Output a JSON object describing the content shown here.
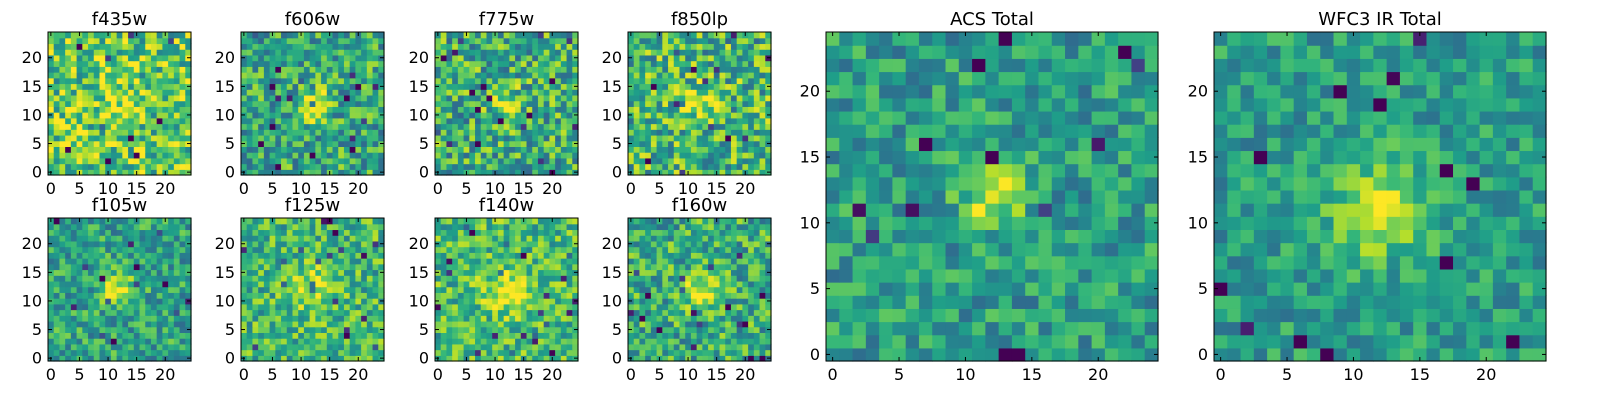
{
  "chart_data": [
    {
      "type": "heatmap",
      "title": "f435w",
      "x_ticks": [
        "0",
        "5",
        "10",
        "15",
        "20"
      ],
      "y_ticks": [
        "0",
        "5",
        "10",
        "15",
        "20"
      ],
      "xlim": [
        -0.5,
        24.5
      ],
      "ylim": [
        -0.5,
        24.5
      ],
      "grid_size": [
        25,
        25
      ],
      "colormap": "viridis",
      "grid": false,
      "peak": {
        "x": 12,
        "y": 12,
        "strength": 0.18,
        "width": 2.0
      },
      "noise_seed": 11,
      "noise_level": 0.5,
      "bias": 0.74
    },
    {
      "type": "heatmap",
      "title": "f606w",
      "x_ticks": [
        "0",
        "5",
        "10",
        "15",
        "20"
      ],
      "y_ticks": [
        "0",
        "5",
        "10",
        "15",
        "20"
      ],
      "xlim": [
        -0.5,
        24.5
      ],
      "ylim": [
        -0.5,
        24.5
      ],
      "grid_size": [
        25,
        25
      ],
      "colormap": "viridis",
      "grid": false,
      "peak": {
        "x": 12,
        "y": 12,
        "strength": 0.4,
        "width": 2.0
      },
      "noise_seed": 23,
      "noise_level": 0.46,
      "bias": 0.6
    },
    {
      "type": "heatmap",
      "title": "f775w",
      "x_ticks": [
        "0",
        "5",
        "10",
        "15",
        "20"
      ],
      "y_ticks": [
        "0",
        "5",
        "10",
        "15",
        "20"
      ],
      "xlim": [
        -0.5,
        24.5
      ],
      "ylim": [
        -0.5,
        24.5
      ],
      "grid_size": [
        25,
        25
      ],
      "colormap": "viridis",
      "grid": false,
      "peak": {
        "x": 12,
        "y": 12,
        "strength": 0.28,
        "width": 2.0
      },
      "noise_seed": 37,
      "noise_level": 0.5,
      "bias": 0.62
    },
    {
      "type": "heatmap",
      "title": "f850lp",
      "x_ticks": [
        "0",
        "5",
        "10",
        "15",
        "20"
      ],
      "y_ticks": [
        "0",
        "5",
        "10",
        "15",
        "20"
      ],
      "xlim": [
        -0.5,
        24.5
      ],
      "ylim": [
        -0.5,
        24.5
      ],
      "grid_size": [
        25,
        25
      ],
      "colormap": "viridis",
      "grid": false,
      "peak": {
        "x": 12,
        "y": 12,
        "strength": 0.28,
        "width": 2.0
      },
      "noise_seed": 41,
      "noise_level": 0.5,
      "bias": 0.66
    },
    {
      "type": "heatmap",
      "title": "f105w",
      "x_ticks": [
        "0",
        "5",
        "10",
        "15",
        "20"
      ],
      "y_ticks": [
        "0",
        "5",
        "10",
        "15",
        "20"
      ],
      "xlim": [
        -0.5,
        24.5
      ],
      "ylim": [
        -0.5,
        24.5
      ],
      "grid_size": [
        25,
        25
      ],
      "colormap": "viridis",
      "grid": false,
      "peak": {
        "x": 12,
        "y": 12,
        "strength": 0.4,
        "width": 2.0
      },
      "noise_seed": 53,
      "noise_level": 0.38,
      "bias": 0.58
    },
    {
      "type": "heatmap",
      "title": "f125w",
      "x_ticks": [
        "0",
        "5",
        "10",
        "15",
        "20"
      ],
      "y_ticks": [
        "0",
        "5",
        "10",
        "15",
        "20"
      ],
      "xlim": [
        -0.5,
        24.5
      ],
      "ylim": [
        -0.5,
        24.5
      ],
      "grid_size": [
        25,
        25
      ],
      "colormap": "viridis",
      "grid": false,
      "peak": {
        "x": 12,
        "y": 12,
        "strength": 0.3,
        "width": 2.6
      },
      "noise_seed": 61,
      "noise_level": 0.4,
      "bias": 0.66
    },
    {
      "type": "heatmap",
      "title": "f140w",
      "x_ticks": [
        "0",
        "5",
        "10",
        "15",
        "20"
      ],
      "y_ticks": [
        "0",
        "5",
        "10",
        "15",
        "20"
      ],
      "xlim": [
        -0.5,
        24.5
      ],
      "ylim": [
        -0.5,
        24.5
      ],
      "grid_size": [
        25,
        25
      ],
      "colormap": "viridis",
      "grid": false,
      "peak": {
        "x": 12,
        "y": 12,
        "strength": 0.3,
        "width": 2.6
      },
      "noise_seed": 71,
      "noise_level": 0.4,
      "bias": 0.68
    },
    {
      "type": "heatmap",
      "title": "f160w",
      "x_ticks": [
        "0",
        "5",
        "10",
        "15",
        "20"
      ],
      "y_ticks": [
        "0",
        "5",
        "10",
        "15",
        "20"
      ],
      "xlim": [
        -0.5,
        24.5
      ],
      "ylim": [
        -0.5,
        24.5
      ],
      "grid_size": [
        25,
        25
      ],
      "colormap": "viridis",
      "grid": false,
      "peak": {
        "x": 12,
        "y": 12,
        "strength": 0.36,
        "width": 2.2
      },
      "noise_seed": 83,
      "noise_level": 0.44,
      "bias": 0.62
    },
    {
      "type": "heatmap",
      "title": "ACS Total",
      "x_ticks": [
        "0",
        "5",
        "10",
        "15",
        "20"
      ],
      "y_ticks": [
        "0",
        "5",
        "10",
        "15",
        "20"
      ],
      "xlim": [
        -0.5,
        24.5
      ],
      "ylim": [
        -0.5,
        24.5
      ],
      "grid_size": [
        25,
        25
      ],
      "colormap": "viridis",
      "grid": false,
      "peak": {
        "x": 12,
        "y": 12,
        "strength": 0.42,
        "width": 1.6
      },
      "noise_seed": 97,
      "noise_level": 0.34,
      "bias": 0.55
    },
    {
      "type": "heatmap",
      "title": "WFC3 IR Total",
      "x_ticks": [
        "0",
        "5",
        "10",
        "15",
        "20"
      ],
      "y_ticks": [
        "0",
        "5",
        "10",
        "15",
        "20"
      ],
      "xlim": [
        -0.5,
        24.5
      ],
      "ylim": [
        -0.5,
        24.5
      ],
      "grid_size": [
        25,
        25
      ],
      "colormap": "viridis",
      "grid": false,
      "peak": {
        "x": 12,
        "y": 11,
        "strength": 0.45,
        "width": 2.4
      },
      "noise_seed": 113,
      "noise_level": 0.3,
      "bias": 0.55
    }
  ]
}
